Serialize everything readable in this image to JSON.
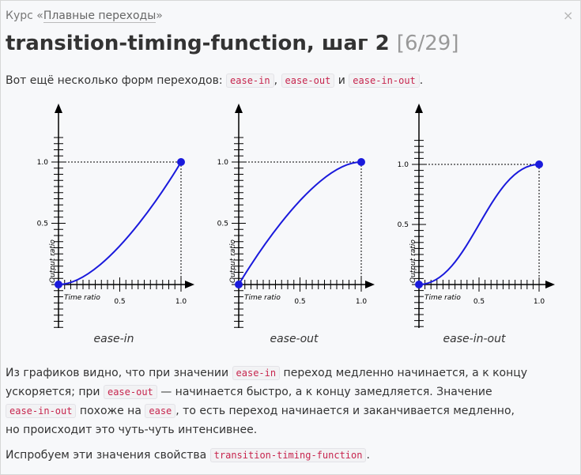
{
  "breadcrumb": {
    "prefix": "Курс «",
    "course": "Плавные переходы",
    "suffix": "»"
  },
  "close_label": "×",
  "title": {
    "main": "transition-timing-function, шаг 2",
    "counter": "[6/29]"
  },
  "intro": {
    "text_before": "Вот ещё несколько форм переходов: ",
    "code1": "ease-in",
    "sep1": ",",
    "code2": "ease-out",
    "sep2": " и ",
    "code3": "ease-in-out",
    "end": "."
  },
  "chart_data": [
    {
      "type": "line",
      "name": "ease-in",
      "xlabel": "Time ratio",
      "ylabel": "Output ratio",
      "xticks": [
        "0.5",
        "1.0"
      ],
      "yticks": [
        "0.5",
        "1.0"
      ],
      "xlim": [
        0,
        1
      ],
      "ylim": [
        0,
        1
      ],
      "bezier": [
        0.42,
        0,
        1,
        1
      ],
      "points": [
        [
          0,
          0
        ],
        [
          0.1,
          0.02
        ],
        [
          0.2,
          0.06
        ],
        [
          0.3,
          0.13
        ],
        [
          0.4,
          0.22
        ],
        [
          0.5,
          0.32
        ],
        [
          0.6,
          0.45
        ],
        [
          0.7,
          0.58
        ],
        [
          0.8,
          0.72
        ],
        [
          0.9,
          0.86
        ],
        [
          1,
          1
        ]
      ]
    },
    {
      "type": "line",
      "name": "ease-out",
      "xlabel": "Time ratio",
      "ylabel": "Output ratio",
      "xticks": [
        "0.5",
        "1.0"
      ],
      "yticks": [
        "0.5",
        "1.0"
      ],
      "xlim": [
        0,
        1
      ],
      "ylim": [
        0,
        1
      ],
      "bezier": [
        0,
        0,
        0.58,
        1
      ],
      "points": [
        [
          0,
          0
        ],
        [
          0.1,
          0.14
        ],
        [
          0.2,
          0.28
        ],
        [
          0.3,
          0.42
        ],
        [
          0.4,
          0.55
        ],
        [
          0.5,
          0.68
        ],
        [
          0.6,
          0.78
        ],
        [
          0.7,
          0.87
        ],
        [
          0.8,
          0.94
        ],
        [
          0.9,
          0.98
        ],
        [
          1,
          1
        ]
      ]
    },
    {
      "type": "line",
      "name": "ease-in-out",
      "xlabel": "Time ratio",
      "ylabel": "Output ratio",
      "xticks": [
        "0.5",
        "1.0"
      ],
      "yticks": [
        "0.5",
        "1.0"
      ],
      "xlim": [
        0,
        1
      ],
      "ylim": [
        0,
        1
      ],
      "bezier": [
        0.42,
        0,
        0.58,
        1
      ],
      "points": [
        [
          0,
          0
        ],
        [
          0.1,
          0.02
        ],
        [
          0.2,
          0.08
        ],
        [
          0.3,
          0.19
        ],
        [
          0.4,
          0.35
        ],
        [
          0.5,
          0.5
        ],
        [
          0.6,
          0.65
        ],
        [
          0.7,
          0.81
        ],
        [
          0.8,
          0.92
        ],
        [
          0.9,
          0.98
        ],
        [
          1,
          1
        ]
      ]
    }
  ],
  "explanation": {
    "line1_a": "Из графиков видно, что при значении ",
    "line1_code": "ease-in",
    "line1_b": " переход медленно начинается, а к концу",
    "line2_a": "ускоряется; при ",
    "line2_code": "ease-out",
    "line2_b": " — начинается быстро, а к концу замедляется. Значение",
    "line3_code1": "ease-in-out",
    "line3_a": " похоже на ",
    "line3_code2": "ease",
    "line3_b": ", то есть переход начинается и заканчивается медленно,",
    "line4": "но происходит это чуть-чуть интенсивнее."
  },
  "try": {
    "text_before": "Испробуем эти значения свойства ",
    "code": "transition-timing-function",
    "end": "."
  },
  "colors": {
    "curve": "#1a1adc",
    "axis": "#000000",
    "code_text": "#c7254e",
    "code_bg": "#f2f2f4"
  }
}
